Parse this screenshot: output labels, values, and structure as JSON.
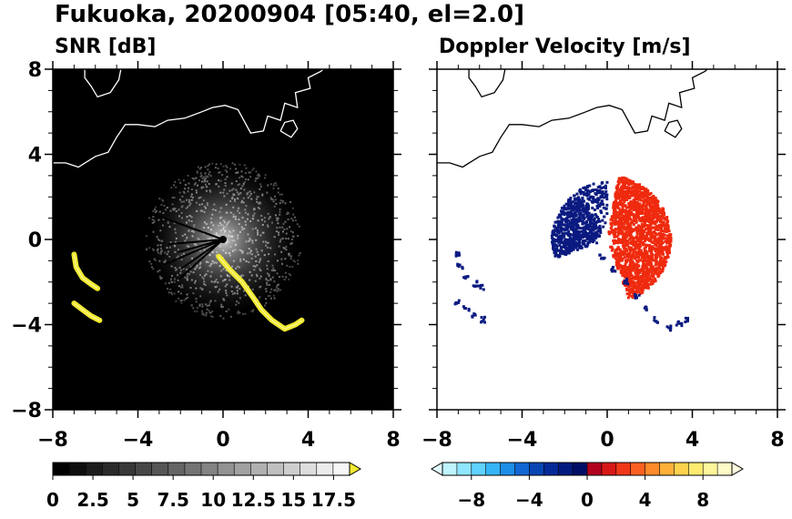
{
  "figure_title": "Fukuoka, 20200904 [05:40, el=2.0]",
  "chart_data": [
    {
      "type": "heatmap",
      "title": "SNR [dB]",
      "x_ticks": [
        "−8",
        "−4",
        "0",
        "4",
        "8"
      ],
      "y_ticks": [
        "8",
        "4",
        "0",
        "−4",
        "−8"
      ],
      "xlim": [
        -8,
        8
      ],
      "ylim": [
        -8,
        8
      ],
      "background_color": "#000000",
      "colorbar": {
        "range": [
          0,
          18.5
        ],
        "tick_labels": [
          "0",
          "2.5",
          "5",
          "7.5",
          "10",
          "12.5",
          "15",
          "17.5"
        ],
        "tick_values": [
          0,
          2.5,
          5,
          7.5,
          10,
          12.5,
          15,
          17.5
        ],
        "extend": "max",
        "colors_dark_to_light": [
          "#000000",
          "#0e0e0e",
          "#1c1c1c",
          "#2a2a2a",
          "#383838",
          "#474747",
          "#565656",
          "#656565",
          "#747474",
          "#838383",
          "#929292",
          "#a1a1a1",
          "#b0b0b0",
          "#bfbfbf",
          "#cecece",
          "#dddddd",
          "#ececec",
          "#f6f6f6"
        ],
        "extend_color": "#f2ea30"
      },
      "echo": {
        "radar_center": [
          0,
          0
        ],
        "clutter_radius_km": 3.5,
        "high_snr_color": "#f2ea30",
        "high_snr_bands": [
          {
            "x": [
              -0.2,
              0.3,
              0.9,
              1.4,
              1.8,
              2.3,
              2.9,
              3.4,
              3.7
            ],
            "y": [
              -0.8,
              -1.4,
              -2.0,
              -2.7,
              -3.3,
              -3.8,
              -4.2,
              -4.0,
              -3.8
            ]
          },
          {
            "x": [
              -7.0,
              -6.9,
              -6.6,
              -6.2,
              -5.9
            ],
            "y": [
              -0.7,
              -1.3,
              -1.8,
              -2.1,
              -2.3
            ]
          },
          {
            "x": [
              -7.0,
              -6.6,
              -6.2,
              -5.8
            ],
            "y": [
              -3.0,
              -3.3,
              -3.6,
              -3.8
            ]
          }
        ]
      }
    },
    {
      "type": "heatmap",
      "title": "Doppler Velocity [m/s]",
      "x_ticks": [
        "−8",
        "−4",
        "0",
        "4",
        "8"
      ],
      "y_ticks": [
        "8",
        "4",
        "0",
        "−4",
        "−8"
      ],
      "xlim": [
        -8,
        8
      ],
      "ylim": [
        -8,
        8
      ],
      "background_color": "#ffffff",
      "colorbar": {
        "range": [
          -10,
          10
        ],
        "tick_labels": [
          "−8",
          "−4",
          "0",
          "4",
          "8"
        ],
        "tick_values": [
          -8,
          -4,
          0,
          4,
          8
        ],
        "extend": "both",
        "colors_low_to_high": [
          "#bff3ff",
          "#8fe6ff",
          "#5fd2ff",
          "#37b4f5",
          "#1d8ee8",
          "#1266d2",
          "#0a45b4",
          "#06299a",
          "#031a80",
          "#020f66",
          "#b0001e",
          "#d81818",
          "#f03818",
          "#fb6020",
          "#ff8a2a",
          "#ffb03a",
          "#ffd24e",
          "#ffea70",
          "#fff59a",
          "#fffbc8"
        ],
        "extend_low_color": "#e2fbff",
        "extend_high_color": "#fffde0"
      },
      "echo": {
        "negative_color": "#0a1a80",
        "positive_color": "#ef2a0e",
        "negative_sector_bearing_deg": [
          250,
          330
        ],
        "positive_sector_bearing_deg": [
          10,
          160
        ]
      }
    }
  ],
  "coastline": {
    "color_panel1": "#ffffff",
    "color_panel2": "#000000",
    "main": [
      [
        -8,
        3.6
      ],
      [
        -7.4,
        3.6
      ],
      [
        -6.8,
        3.4
      ],
      [
        -6.0,
        3.9
      ],
      [
        -5.4,
        4.1
      ],
      [
        -5.0,
        4.8
      ],
      [
        -4.6,
        5.4
      ],
      [
        -4.0,
        5.4
      ],
      [
        -3.2,
        5.3
      ],
      [
        -2.6,
        5.6
      ],
      [
        -1.8,
        5.7
      ],
      [
        -1.0,
        6.0
      ],
      [
        -0.5,
        6.2
      ],
      [
        0.1,
        6.3
      ],
      [
        0.7,
        6.1
      ],
      [
        1.3,
        5.0
      ],
      [
        1.9,
        5.1
      ],
      [
        2.1,
        5.8
      ],
      [
        2.7,
        5.6
      ],
      [
        2.9,
        6.4
      ],
      [
        3.5,
        6.2
      ],
      [
        3.4,
        6.9
      ],
      [
        4.1,
        7.1
      ],
      [
        4.0,
        7.6
      ],
      [
        4.6,
        7.9
      ],
      [
        4.7,
        8.0
      ]
    ],
    "islands": [
      [
        [
          -6.5,
          8.0
        ],
        [
          -6.5,
          7.6
        ],
        [
          -6.2,
          7.2
        ],
        [
          -5.9,
          6.7
        ],
        [
          -5.3,
          6.9
        ],
        [
          -4.9,
          7.5
        ],
        [
          -4.8,
          8.0
        ]
      ],
      [
        [
          2.7,
          5.1
        ],
        [
          2.9,
          5.5
        ],
        [
          3.3,
          5.6
        ],
        [
          3.5,
          5.2
        ],
        [
          3.2,
          4.8
        ],
        [
          2.7,
          5.1
        ]
      ]
    ]
  }
}
